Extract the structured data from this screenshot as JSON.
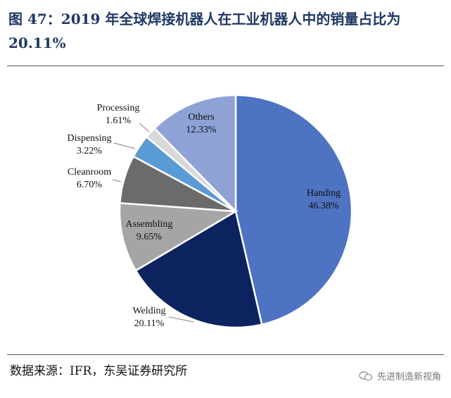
{
  "header": {
    "title": "图 47：2019 年全球焊接机器人在工业机器人中的销量占比为 20.11%"
  },
  "footer": {
    "source": "数据来源：IFR，东吴证券研究所",
    "watermark": "先进制造新视角"
  },
  "chart_data": {
    "type": "pie",
    "slices": [
      {
        "label": "Handing",
        "value": 46.38,
        "value_label": "46.38%",
        "color": "#4e73c2"
      },
      {
        "label": "Welding",
        "value": 20.11,
        "value_label": "20.11%",
        "color": "#0d2360"
      },
      {
        "label": "Assembling",
        "value": 9.65,
        "value_label": "9.65%",
        "color": "#a5a5a5"
      },
      {
        "label": "Cleanroom",
        "value": 6.7,
        "value_label": "6.70%",
        "color": "#6b6b6b"
      },
      {
        "label": "Dispensing",
        "value": 3.22,
        "value_label": "3.22%",
        "color": "#5b9bd5"
      },
      {
        "label": "Processing",
        "value": 1.61,
        "value_label": "1.61%",
        "color": "#d9d9d9"
      },
      {
        "label": "Others",
        "value": 12.33,
        "value_label": "12.33%",
        "color": "#8ea2d6"
      }
    ]
  }
}
